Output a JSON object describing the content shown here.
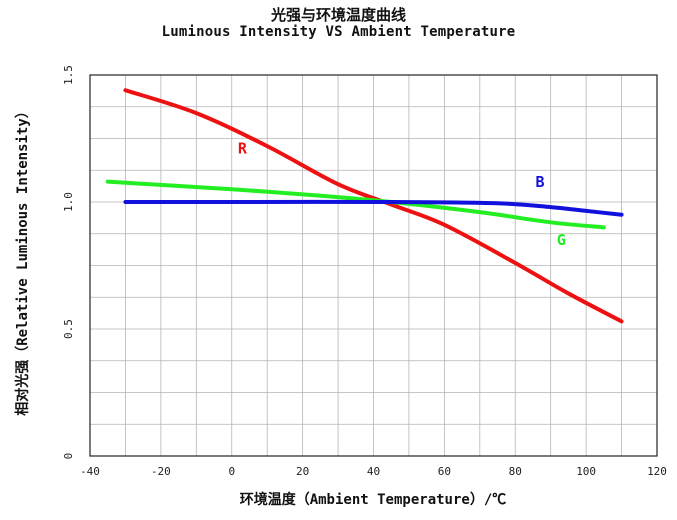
{
  "chart_data": {
    "type": "line",
    "title": "光强与环境温度曲线",
    "subtitle": "Luminous Intensity VS Ambient Temperature",
    "xlabel": "环境温度（Ambient Temperature）/℃",
    "ylabel": "相对光强（Relative Luminous Intensity）",
    "xlim": [
      -40,
      120
    ],
    "ylim": [
      0,
      1.5
    ],
    "x_ticks": [
      "-40",
      "-20",
      "0",
      "20",
      "40",
      "60",
      "80",
      "100",
      "120"
    ],
    "y_ticks": [
      "0",
      "0.5",
      "1.0",
      "1.5"
    ],
    "grid": true,
    "series": [
      {
        "name": "R",
        "color": "#ee1111",
        "points": [
          [
            -30,
            1.44
          ],
          [
            -10,
            1.35
          ],
          [
            10,
            1.22
          ],
          [
            30,
            1.07
          ],
          [
            45,
            0.99
          ],
          [
            60,
            0.91
          ],
          [
            80,
            0.76
          ],
          [
            95,
            0.64
          ],
          [
            110,
            0.53
          ]
        ]
      },
      {
        "name": "G",
        "color": "#22ee22",
        "points": [
          [
            -35,
            1.08
          ],
          [
            0,
            1.05
          ],
          [
            20,
            1.03
          ],
          [
            45,
            1.0
          ],
          [
            70,
            0.96
          ],
          [
            90,
            0.92
          ],
          [
            105,
            0.9
          ]
        ]
      },
      {
        "name": "B",
        "color": "#1111dd",
        "points": [
          [
            -30,
            1.0
          ],
          [
            0,
            1.0
          ],
          [
            45,
            1.0
          ],
          [
            75,
            0.995
          ],
          [
            90,
            0.98
          ],
          [
            100,
            0.965
          ],
          [
            110,
            0.95
          ]
        ]
      }
    ],
    "series_labels": [
      {
        "name": "R",
        "x": 3,
        "y": 1.19
      },
      {
        "name": "B",
        "x": 87,
        "y": 1.06
      },
      {
        "name": "G",
        "x": 93,
        "y": 0.83
      }
    ]
  }
}
